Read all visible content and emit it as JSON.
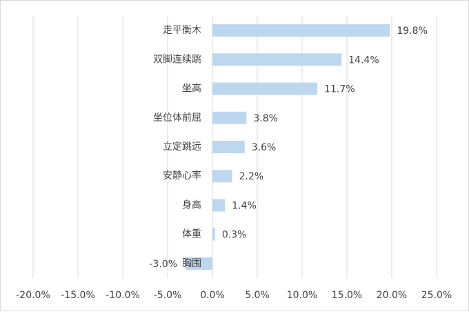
{
  "chart_data": {
    "type": "barh",
    "categories": [
      "走平衡木",
      "双脚连续跳",
      "坐高",
      "坐位体前屈",
      "立定跳远",
      "安静心率",
      "身高",
      "体重",
      "胸围"
    ],
    "values": [
      19.8,
      14.4,
      11.7,
      3.8,
      3.6,
      2.2,
      1.4,
      0.3,
      -3.0
    ],
    "value_labels": [
      "19.8%",
      "14.4%",
      "11.7%",
      "3.8%",
      "3.6%",
      "2.2%",
      "1.4%",
      "0.3%",
      "-3.0%"
    ],
    "color": "#bdd7ee",
    "xlim": [
      -20,
      25
    ],
    "xticks": [
      {
        "value": -20,
        "label": "-20.0%"
      },
      {
        "value": -15,
        "label": "-15.0%"
      },
      {
        "value": -10,
        "label": "-10.0%"
      },
      {
        "value": -5,
        "label": "-5.0%"
      },
      {
        "value": 0,
        "label": "0.0%"
      },
      {
        "value": 5,
        "label": "5.0%"
      },
      {
        "value": 10,
        "label": "10.0%"
      },
      {
        "value": 15,
        "label": "15.0%"
      },
      {
        "value": 20,
        "label": "20.0%"
      },
      {
        "value": 25,
        "label": "25.0%"
      }
    ],
    "grid": true
  }
}
